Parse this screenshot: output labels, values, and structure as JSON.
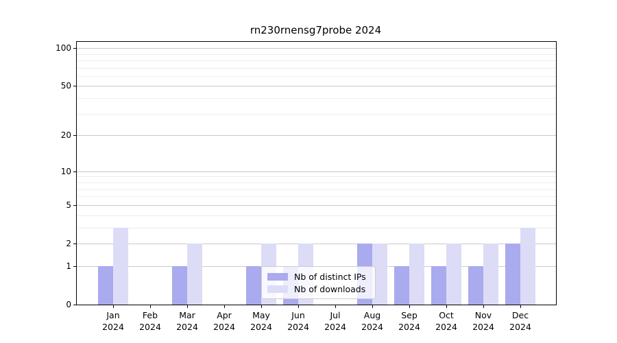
{
  "chart_data": {
    "type": "bar",
    "title": "rn230rnensg7probe 2024",
    "categories": [
      "Jan",
      "Feb",
      "Mar",
      "Apr",
      "May",
      "Jun",
      "Jul",
      "Aug",
      "Sep",
      "Oct",
      "Nov",
      "Dec"
    ],
    "category_year": "2024",
    "series": [
      {
        "name": "Nb of distinct IPs",
        "color": "#aaaaee",
        "values": [
          1,
          0,
          1,
          0,
          1,
          1,
          0,
          2,
          1,
          1,
          1,
          2
        ]
      },
      {
        "name": "Nb of downloads",
        "color": "#dcdcf7",
        "values": [
          3,
          0,
          2,
          0,
          2,
          2,
          0,
          2,
          2,
          2,
          2,
          3
        ]
      }
    ],
    "xlabel": "",
    "ylabel": "",
    "yscale": "log1p",
    "ylim": [
      0,
      112
    ],
    "y_ticks": [
      0,
      1,
      2,
      5,
      10,
      20,
      50,
      100
    ],
    "y_minor_ticks": [
      3,
      4,
      6,
      7,
      8,
      9,
      30,
      40,
      60,
      70,
      80,
      90
    ],
    "grid": "horizontal-major-and-minor",
    "legend_position": "lower-center-left-inside"
  }
}
